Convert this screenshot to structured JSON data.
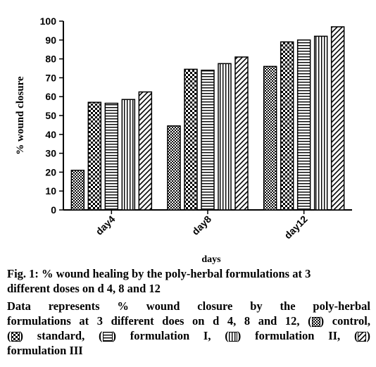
{
  "chart_data": {
    "type": "bar",
    "categories": [
      "day4",
      "day8",
      "day12"
    ],
    "series": [
      {
        "name": "control",
        "pattern": "dense-check",
        "values": [
          21,
          44.5,
          76
        ]
      },
      {
        "name": "standard",
        "pattern": "checker",
        "values": [
          57,
          74.5,
          89
        ]
      },
      {
        "name": "formulation I",
        "pattern": "horizontal",
        "values": [
          56.5,
          74,
          90
        ]
      },
      {
        "name": "formulation II",
        "pattern": "vertical",
        "values": [
          58.5,
          77.5,
          92
        ]
      },
      {
        "name": "formulation III",
        "pattern": "diagonal",
        "values": [
          62.5,
          81,
          97
        ]
      }
    ],
    "xlabel": "days",
    "ylabel": "% wound closure",
    "ylim": [
      0,
      100
    ],
    "yticks": [
      0,
      10,
      20,
      30,
      40,
      50,
      60,
      70,
      80,
      90,
      100
    ],
    "grid": false
  },
  "caption": {
    "title_line1": "Fig. 1: % wound healing by the poly-herbal formulations at 3",
    "title_line2": "different doses on d 4, 8 and 12",
    "body_line1": "Data represents % wound closure by the poly-herbal",
    "body_line2_a": "formulations at 3 different does on d 4, 8 and 12, (",
    "body_line2_b": ") control,",
    "body_line3_a": "(",
    "body_line3_b": ") standard, (",
    "body_line3_c": ") formulation I, (",
    "body_line3_d": ") formulation II, (",
    "body_line3_e": ")",
    "body_line4": "formulation III"
  }
}
